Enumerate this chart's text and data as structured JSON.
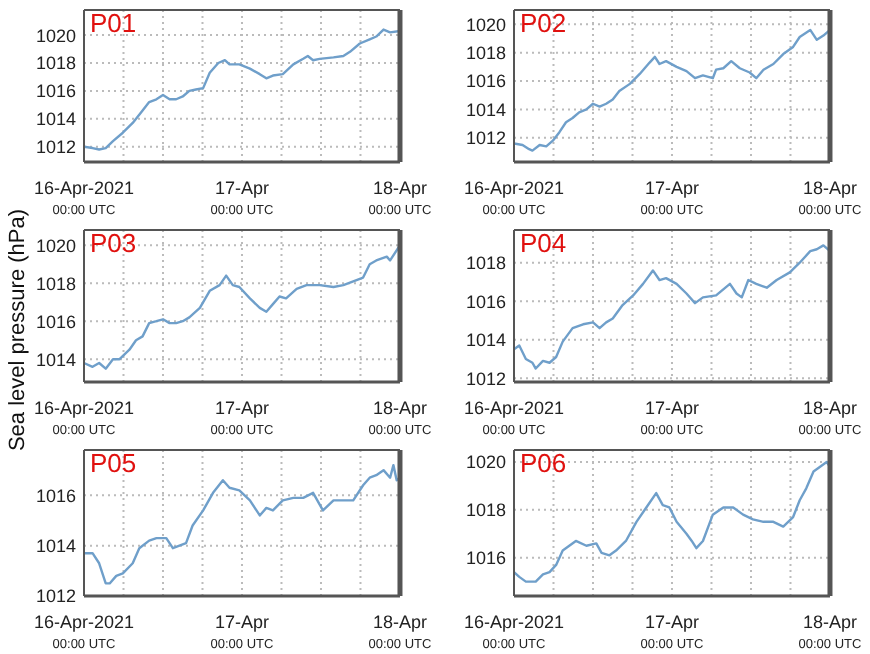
{
  "chart_data": [
    {
      "type": "line",
      "title": "P01",
      "x": [
        "2021-04-16T00:00",
        "2021-04-16T01:18",
        "2021-04-16T02:18",
        "2021-04-16T03:18",
        "2021-04-16T04:24",
        "2021-04-16T05:54",
        "2021-04-16T07:24",
        "2021-04-16T08:54",
        "2021-04-16T09:54",
        "2021-04-16T11:00",
        "2021-04-16T12:00",
        "2021-04-16T13:00",
        "2021-04-16T14:00",
        "2021-04-16T15:00",
        "2021-04-16T16:00",
        "2021-04-16T17:00",
        "2021-04-16T18:06",
        "2021-04-16T19:06",
        "2021-04-16T20:24",
        "2021-04-16T21:24",
        "2021-04-16T22:06",
        "2021-04-16T23:36",
        "2021-04-17T01:12",
        "2021-04-17T02:42",
        "2021-04-17T03:42",
        "2021-04-17T04:42",
        "2021-04-17T06:12",
        "2021-04-17T07:48",
        "2021-04-17T09:18",
        "2021-04-17T10:00",
        "2021-04-17T10:48",
        "2021-04-17T11:48",
        "2021-04-17T13:54",
        "2021-04-17T15:24",
        "2021-04-17T16:24",
        "2021-04-17T17:54",
        "2021-04-17T19:24",
        "2021-04-17T20:24",
        "2021-04-17T21:30",
        "2021-04-17T22:30",
        "2021-04-18T00:00"
      ],
      "series": [
        {
          "color": "#6f9fca",
          "values": [
            1012.0,
            1011.9,
            1011.8,
            1011.9,
            1012.4,
            1013.0,
            1013.7,
            1014.6,
            1015.2,
            1015.4,
            1015.7,
            1015.4,
            1015.4,
            1015.6,
            1016.0,
            1016.1,
            1016.2,
            1017.3,
            1018.0,
            1018.2,
            1017.9,
            1017.9,
            1017.6,
            1017.2,
            1016.9,
            1017.1,
            1017.2,
            1017.9,
            1018.3,
            1018.5,
            1018.2,
            1018.3,
            1018.4,
            1018.5,
            1018.8,
            1019.4,
            1019.7,
            1019.9,
            1020.4,
            1020.2,
            1020.3
          ]
        }
      ],
      "xlim": [
        "2021-04-16T00:00",
        "2021-04-18T00:00"
      ],
      "xticks": [
        {
          "value": "2021-04-16T00:00",
          "label": "16-Apr-2021\n00:00 UTC"
        },
        {
          "value": "2021-04-16T06:00",
          "label": null
        },
        {
          "value": "2021-04-16T12:00",
          "label": null
        },
        {
          "value": "2021-04-16T18:00",
          "label": null
        },
        {
          "value": "2021-04-17T00:00",
          "label": "17-Apr\n00:00 UTC"
        },
        {
          "value": "2021-04-17T06:00",
          "label": null
        },
        {
          "value": "2021-04-17T12:00",
          "label": null
        },
        {
          "value": "2021-04-17T18:00",
          "label": null
        },
        {
          "value": "2021-04-18T00:00",
          "label": "18-Apr\n00:00 UTC"
        }
      ],
      "ylim": [
        1010.9,
        1021.8
      ],
      "yticks": [
        1012,
        1014,
        1016,
        1018,
        1020
      ],
      "grid": true,
      "line_style": "solid",
      "marker": "none"
    },
    {
      "type": "line",
      "title": "P02",
      "x": [
        "2021-04-16T00:00",
        "2021-04-16T01:18",
        "2021-04-16T02:18",
        "2021-04-16T02:48",
        "2021-04-16T03:54",
        "2021-04-16T04:54",
        "2021-04-16T05:54",
        "2021-04-16T06:54",
        "2021-04-16T07:54",
        "2021-04-16T08:54",
        "2021-04-16T09:54",
        "2021-04-16T11:00",
        "2021-04-16T12:00",
        "2021-04-16T13:00",
        "2021-04-16T14:00",
        "2021-04-16T15:00",
        "2021-04-16T16:00",
        "2021-04-16T17:36",
        "2021-04-16T19:06",
        "2021-04-16T20:36",
        "2021-04-16T21:24",
        "2021-04-16T22:06",
        "2021-04-16T23:06",
        "2021-04-17T00:42",
        "2021-04-17T02:12",
        "2021-04-17T03:30",
        "2021-04-17T04:42",
        "2021-04-17T06:12",
        "2021-04-17T06:42",
        "2021-04-17T07:48",
        "2021-04-17T09:00",
        "2021-04-17T10:18",
        "2021-04-17T11:48",
        "2021-04-17T12:48",
        "2021-04-17T13:54",
        "2021-04-17T15:24",
        "2021-04-17T16:54",
        "2021-04-17T18:24",
        "2021-04-17T19:24",
        "2021-04-17T21:00",
        "2021-04-17T22:00",
        "2021-04-17T23:00",
        "2021-04-18T00:00"
      ],
      "series": [
        {
          "color": "#6f9fca",
          "values": [
            1011.6,
            1011.5,
            1011.2,
            1011.1,
            1011.5,
            1011.4,
            1011.8,
            1012.4,
            1013.1,
            1013.4,
            1013.8,
            1014.0,
            1014.4,
            1014.2,
            1014.4,
            1014.7,
            1015.3,
            1015.8,
            1016.5,
            1017.3,
            1017.7,
            1017.2,
            1017.4,
            1017.0,
            1016.7,
            1016.2,
            1016.4,
            1016.2,
            1016.8,
            1016.9,
            1017.4,
            1016.9,
            1016.6,
            1016.2,
            1016.8,
            1017.2,
            1017.9,
            1018.4,
            1019.1,
            1019.6,
            1018.9,
            1019.2,
            1019.6
          ]
        }
      ],
      "xlim": [
        "2021-04-16T00:00",
        "2021-04-18T00:00"
      ],
      "xticks": [
        {
          "value": "2021-04-16T00:00",
          "label": "16-Apr-2021\n00:00 UTC"
        },
        {
          "value": "2021-04-16T06:00",
          "label": null
        },
        {
          "value": "2021-04-16T12:00",
          "label": null
        },
        {
          "value": "2021-04-16T18:00",
          "label": null
        },
        {
          "value": "2021-04-17T00:00",
          "label": "17-Apr\n00:00 UTC"
        },
        {
          "value": "2021-04-17T06:00",
          "label": null
        },
        {
          "value": "2021-04-17T12:00",
          "label": null
        },
        {
          "value": "2021-04-17T18:00",
          "label": null
        },
        {
          "value": "2021-04-18T00:00",
          "label": "18-Apr\n00:00 UTC"
        }
      ],
      "ylim": [
        1010.3,
        1021.0
      ],
      "yticks": [
        1012,
        1014,
        1016,
        1018,
        1020
      ],
      "grid": true,
      "line_style": "solid",
      "marker": "none"
    },
    {
      "type": "line",
      "title": "P03",
      "ylabel": "Sea level pressure (hPa)",
      "x": [
        "2021-04-16T00:00",
        "2021-04-16T01:18",
        "2021-04-16T02:18",
        "2021-04-16T03:18",
        "2021-04-16T04:24",
        "2021-04-16T05:24",
        "2021-04-16T06:54",
        "2021-04-16T07:54",
        "2021-04-16T08:54",
        "2021-04-16T09:54",
        "2021-04-16T11:00",
        "2021-04-16T12:00",
        "2021-04-16T13:00",
        "2021-04-16T14:00",
        "2021-04-16T15:00",
        "2021-04-16T16:00",
        "2021-04-16T17:36",
        "2021-04-16T19:06",
        "2021-04-16T20:36",
        "2021-04-16T21:36",
        "2021-04-16T22:36",
        "2021-04-16T23:36",
        "2021-04-17T01:12",
        "2021-04-17T02:42",
        "2021-04-17T03:42",
        "2021-04-17T04:42",
        "2021-04-17T05:42",
        "2021-04-17T06:42",
        "2021-04-17T08:18",
        "2021-04-17T09:48",
        "2021-04-17T11:48",
        "2021-04-17T13:54",
        "2021-04-17T15:24",
        "2021-04-17T16:54",
        "2021-04-17T18:24",
        "2021-04-17T19:24",
        "2021-04-17T20:24",
        "2021-04-17T22:00",
        "2021-04-17T22:30",
        "2021-04-18T00:00"
      ],
      "series": [
        {
          "color": "#6f9fca",
          "values": [
            1013.8,
            1013.6,
            1013.8,
            1013.5,
            1014.0,
            1014.0,
            1014.5,
            1015.0,
            1015.2,
            1015.9,
            1016.0,
            1016.1,
            1015.9,
            1015.9,
            1016.0,
            1016.2,
            1016.7,
            1017.6,
            1017.9,
            1018.4,
            1017.9,
            1017.8,
            1017.2,
            1016.7,
            1016.5,
            1016.9,
            1017.3,
            1017.2,
            1017.7,
            1017.9,
            1017.9,
            1017.8,
            1017.9,
            1018.1,
            1018.3,
            1019.0,
            1019.2,
            1019.4,
            1019.2,
            1020.0
          ]
        }
      ],
      "xlim": [
        "2021-04-16T00:00",
        "2021-04-18T00:00"
      ],
      "xticks": [
        {
          "value": "2021-04-16T00:00",
          "label": "16-Apr-2021\n00:00 UTC"
        },
        {
          "value": "2021-04-16T06:00",
          "label": null
        },
        {
          "value": "2021-04-16T12:00",
          "label": null
        },
        {
          "value": "2021-04-16T18:00",
          "label": null
        },
        {
          "value": "2021-04-17T00:00",
          "label": "17-Apr\n00:00 UTC"
        },
        {
          "value": "2021-04-17T06:00",
          "label": null
        },
        {
          "value": "2021-04-17T12:00",
          "label": null
        },
        {
          "value": "2021-04-17T18:00",
          "label": null
        },
        {
          "value": "2021-04-18T00:00",
          "label": "18-Apr\n00:00 UTC"
        }
      ],
      "ylim": [
        1012.8,
        1020.8
      ],
      "yticks": [
        1014,
        1016,
        1018,
        1020
      ],
      "grid": true,
      "line_style": "solid",
      "marker": "none"
    },
    {
      "type": "line",
      "title": "P04",
      "x": [
        "2021-04-16T00:00",
        "2021-04-16T00:48",
        "2021-04-16T01:48",
        "2021-04-16T02:48",
        "2021-04-16T03:18",
        "2021-04-16T04:24",
        "2021-04-16T05:24",
        "2021-04-16T06:24",
        "2021-04-16T07:24",
        "2021-04-16T08:54",
        "2021-04-16T10:30",
        "2021-04-16T12:00",
        "2021-04-16T13:00",
        "2021-04-16T14:00",
        "2021-04-16T15:00",
        "2021-04-16T16:30",
        "2021-04-16T18:06",
        "2021-04-16T19:36",
        "2021-04-16T21:06",
        "2021-04-16T22:06",
        "2021-04-16T23:06",
        "2021-04-17T00:42",
        "2021-04-17T02:12",
        "2021-04-17T03:30",
        "2021-04-17T04:42",
        "2021-04-17T06:42",
        "2021-04-17T08:48",
        "2021-04-17T09:48",
        "2021-04-17T10:36",
        "2021-04-17T11:36",
        "2021-04-17T12:48",
        "2021-04-17T14:24",
        "2021-04-17T15:54",
        "2021-04-17T17:54",
        "2021-04-17T19:24",
        "2021-04-17T21:00",
        "2021-04-17T22:00",
        "2021-04-17T23:00",
        "2021-04-18T00:00"
      ],
      "series": [
        {
          "color": "#6f9fca",
          "values": [
            1013.5,
            1013.7,
            1013.0,
            1012.8,
            1012.5,
            1012.9,
            1012.8,
            1013.1,
            1013.9,
            1014.6,
            1014.8,
            1014.9,
            1014.6,
            1014.9,
            1015.1,
            1015.8,
            1016.3,
            1016.9,
            1017.6,
            1017.1,
            1017.2,
            1016.9,
            1016.4,
            1015.9,
            1016.2,
            1016.3,
            1016.9,
            1016.4,
            1016.2,
            1017.1,
            1016.9,
            1016.7,
            1017.1,
            1017.5,
            1018.0,
            1018.6,
            1018.7,
            1018.9,
            1018.6
          ]
        }
      ],
      "xlim": [
        "2021-04-16T00:00",
        "2021-04-18T00:00"
      ],
      "xticks": [
        {
          "value": "2021-04-16T00:00",
          "label": "16-Apr-2021\n00:00 UTC"
        },
        {
          "value": "2021-04-16T06:00",
          "label": null
        },
        {
          "value": "2021-04-16T12:00",
          "label": null
        },
        {
          "value": "2021-04-16T18:00",
          "label": null
        },
        {
          "value": "2021-04-17T00:00",
          "label": "17-Apr\n00:00 UTC"
        },
        {
          "value": "2021-04-17T06:00",
          "label": null
        },
        {
          "value": "2021-04-17T12:00",
          "label": null
        },
        {
          "value": "2021-04-17T18:00",
          "label": null
        },
        {
          "value": "2021-04-18T00:00",
          "label": "18-Apr\n00:00 UTC"
        }
      ],
      "ylim": [
        1011.8,
        1019.7
      ],
      "yticks": [
        1012,
        1014,
        1016,
        1018
      ],
      "grid": true,
      "line_style": "solid",
      "marker": "none"
    },
    {
      "type": "line",
      "title": "P05",
      "x": [
        "2021-04-16T00:00",
        "2021-04-16T01:18",
        "2021-04-16T02:18",
        "2021-04-16T03:18",
        "2021-04-16T03:54",
        "2021-04-16T04:54",
        "2021-04-16T05:54",
        "2021-04-16T07:24",
        "2021-04-16T08:24",
        "2021-04-16T09:54",
        "2021-04-16T11:00",
        "2021-04-16T12:30",
        "2021-04-16T13:30",
        "2021-04-16T14:30",
        "2021-04-16T15:30",
        "2021-04-16T16:30",
        "2021-04-16T18:06",
        "2021-04-16T19:36",
        "2021-04-16T21:06",
        "2021-04-16T22:06",
        "2021-04-16T23:36",
        "2021-04-17T01:12",
        "2021-04-17T02:42",
        "2021-04-17T03:42",
        "2021-04-17T04:42",
        "2021-04-17T06:12",
        "2021-04-17T07:48",
        "2021-04-17T09:18",
        "2021-04-17T10:48",
        "2021-04-17T12:18",
        "2021-04-17T13:54",
        "2021-04-17T15:24",
        "2021-04-17T16:54",
        "2021-04-17T18:24",
        "2021-04-17T19:24",
        "2021-04-17T20:24",
        "2021-04-17T21:30",
        "2021-04-17T22:30",
        "2021-04-17T23:00",
        "2021-04-17T23:30",
        "2021-04-18T00:00"
      ],
      "series": [
        {
          "color": "#6f9fca",
          "values": [
            1013.7,
            1013.7,
            1013.3,
            1012.5,
            1012.5,
            1012.8,
            1012.9,
            1013.3,
            1013.9,
            1014.2,
            1014.3,
            1014.3,
            1013.9,
            1014.0,
            1014.1,
            1014.8,
            1015.4,
            1016.1,
            1016.6,
            1016.3,
            1016.2,
            1015.8,
            1015.2,
            1015.5,
            1015.4,
            1015.8,
            1015.9,
            1015.9,
            1016.1,
            1015.4,
            1015.8,
            1015.8,
            1015.8,
            1016.4,
            1016.7,
            1016.8,
            1017.0,
            1016.7,
            1017.2,
            1016.6,
            1016.7
          ]
        }
      ],
      "xlim": [
        "2021-04-16T00:00",
        "2021-04-18T00:00"
      ],
      "xticks": [
        {
          "value": "2021-04-16T00:00",
          "label": "16-Apr-2021\n00:00 UTC"
        },
        {
          "value": "2021-04-16T06:00",
          "label": null
        },
        {
          "value": "2021-04-16T12:00",
          "label": null
        },
        {
          "value": "2021-04-16T18:00",
          "label": null
        },
        {
          "value": "2021-04-17T00:00",
          "label": "17-Apr\n00:00 UTC"
        },
        {
          "value": "2021-04-17T06:00",
          "label": null
        },
        {
          "value": "2021-04-17T12:00",
          "label": null
        },
        {
          "value": "2021-04-17T18:00",
          "label": null
        },
        {
          "value": "2021-04-18T00:00",
          "label": "18-Apr\n00:00 UTC"
        }
      ],
      "ylim": [
        1012,
        1017.8
      ],
      "yticks": [
        1012,
        1014,
        1016
      ],
      "grid": true,
      "line_style": "solid",
      "marker": "none"
    },
    {
      "type": "line",
      "title": "P06",
      "x": [
        "2021-04-16T00:00",
        "2021-04-16T00:48",
        "2021-04-16T01:48",
        "2021-04-16T03:18",
        "2021-04-16T04:24",
        "2021-04-16T05:24",
        "2021-04-16T06:24",
        "2021-04-16T07:24",
        "2021-04-16T08:24",
        "2021-04-16T09:24",
        "2021-04-16T11:00",
        "2021-04-16T12:30",
        "2021-04-16T13:18",
        "2021-04-16T14:30",
        "2021-04-16T15:30",
        "2021-04-16T17:00",
        "2021-04-16T18:36",
        "2021-04-16T20:06",
        "2021-04-16T21:36",
        "2021-04-16T22:36",
        "2021-04-16T23:36",
        "2021-04-17T00:42",
        "2021-04-17T02:12",
        "2021-04-17T03:00",
        "2021-04-17T03:42",
        "2021-04-17T04:42",
        "2021-04-17T06:12",
        "2021-04-17T07:48",
        "2021-04-17T09:18",
        "2021-04-17T10:48",
        "2021-04-17T12:18",
        "2021-04-17T13:54",
        "2021-04-17T15:24",
        "2021-04-17T16:54",
        "2021-04-17T18:24",
        "2021-04-17T19:24",
        "2021-04-17T20:24",
        "2021-04-17T21:30",
        "2021-04-17T22:30",
        "2021-04-17T23:30",
        "2021-04-18T00:00"
      ],
      "series": [
        {
          "color": "#6f9fca",
          "values": [
            1015.4,
            1015.2,
            1015.0,
            1015.0,
            1015.3,
            1015.4,
            1015.7,
            1016.3,
            1016.5,
            1016.7,
            1016.5,
            1016.6,
            1016.2,
            1016.1,
            1016.3,
            1016.7,
            1017.5,
            1018.1,
            1018.7,
            1018.2,
            1018.1,
            1017.5,
            1017.0,
            1016.7,
            1016.4,
            1016.7,
            1017.8,
            1018.1,
            1018.1,
            1017.8,
            1017.6,
            1017.5,
            1017.5,
            1017.3,
            1017.7,
            1018.4,
            1018.9,
            1019.6,
            1019.8,
            1020.0,
            1019.8
          ]
        }
      ],
      "xlim": [
        "2021-04-16T00:00",
        "2021-04-18T00:00"
      ],
      "xticks": [
        {
          "value": "2021-04-16T00:00",
          "label": "16-Apr-2021\n00:00 UTC"
        },
        {
          "value": "2021-04-16T06:00",
          "label": null
        },
        {
          "value": "2021-04-16T12:00",
          "label": null
        },
        {
          "value": "2021-04-16T18:00",
          "label": null
        },
        {
          "value": "2021-04-17T00:00",
          "label": "17-Apr\n00:00 UTC"
        },
        {
          "value": "2021-04-17T06:00",
          "label": null
        },
        {
          "value": "2021-04-17T12:00",
          "label": null
        },
        {
          "value": "2021-04-17T18:00",
          "label": null
        },
        {
          "value": "2021-04-18T00:00",
          "label": "18-Apr\n00:00 UTC"
        }
      ],
      "ylim": [
        1014.4,
        1020.5
      ],
      "yticks": [
        1016,
        1018,
        1020
      ],
      "grid": true,
      "line_style": "solid",
      "marker": "none"
    }
  ]
}
